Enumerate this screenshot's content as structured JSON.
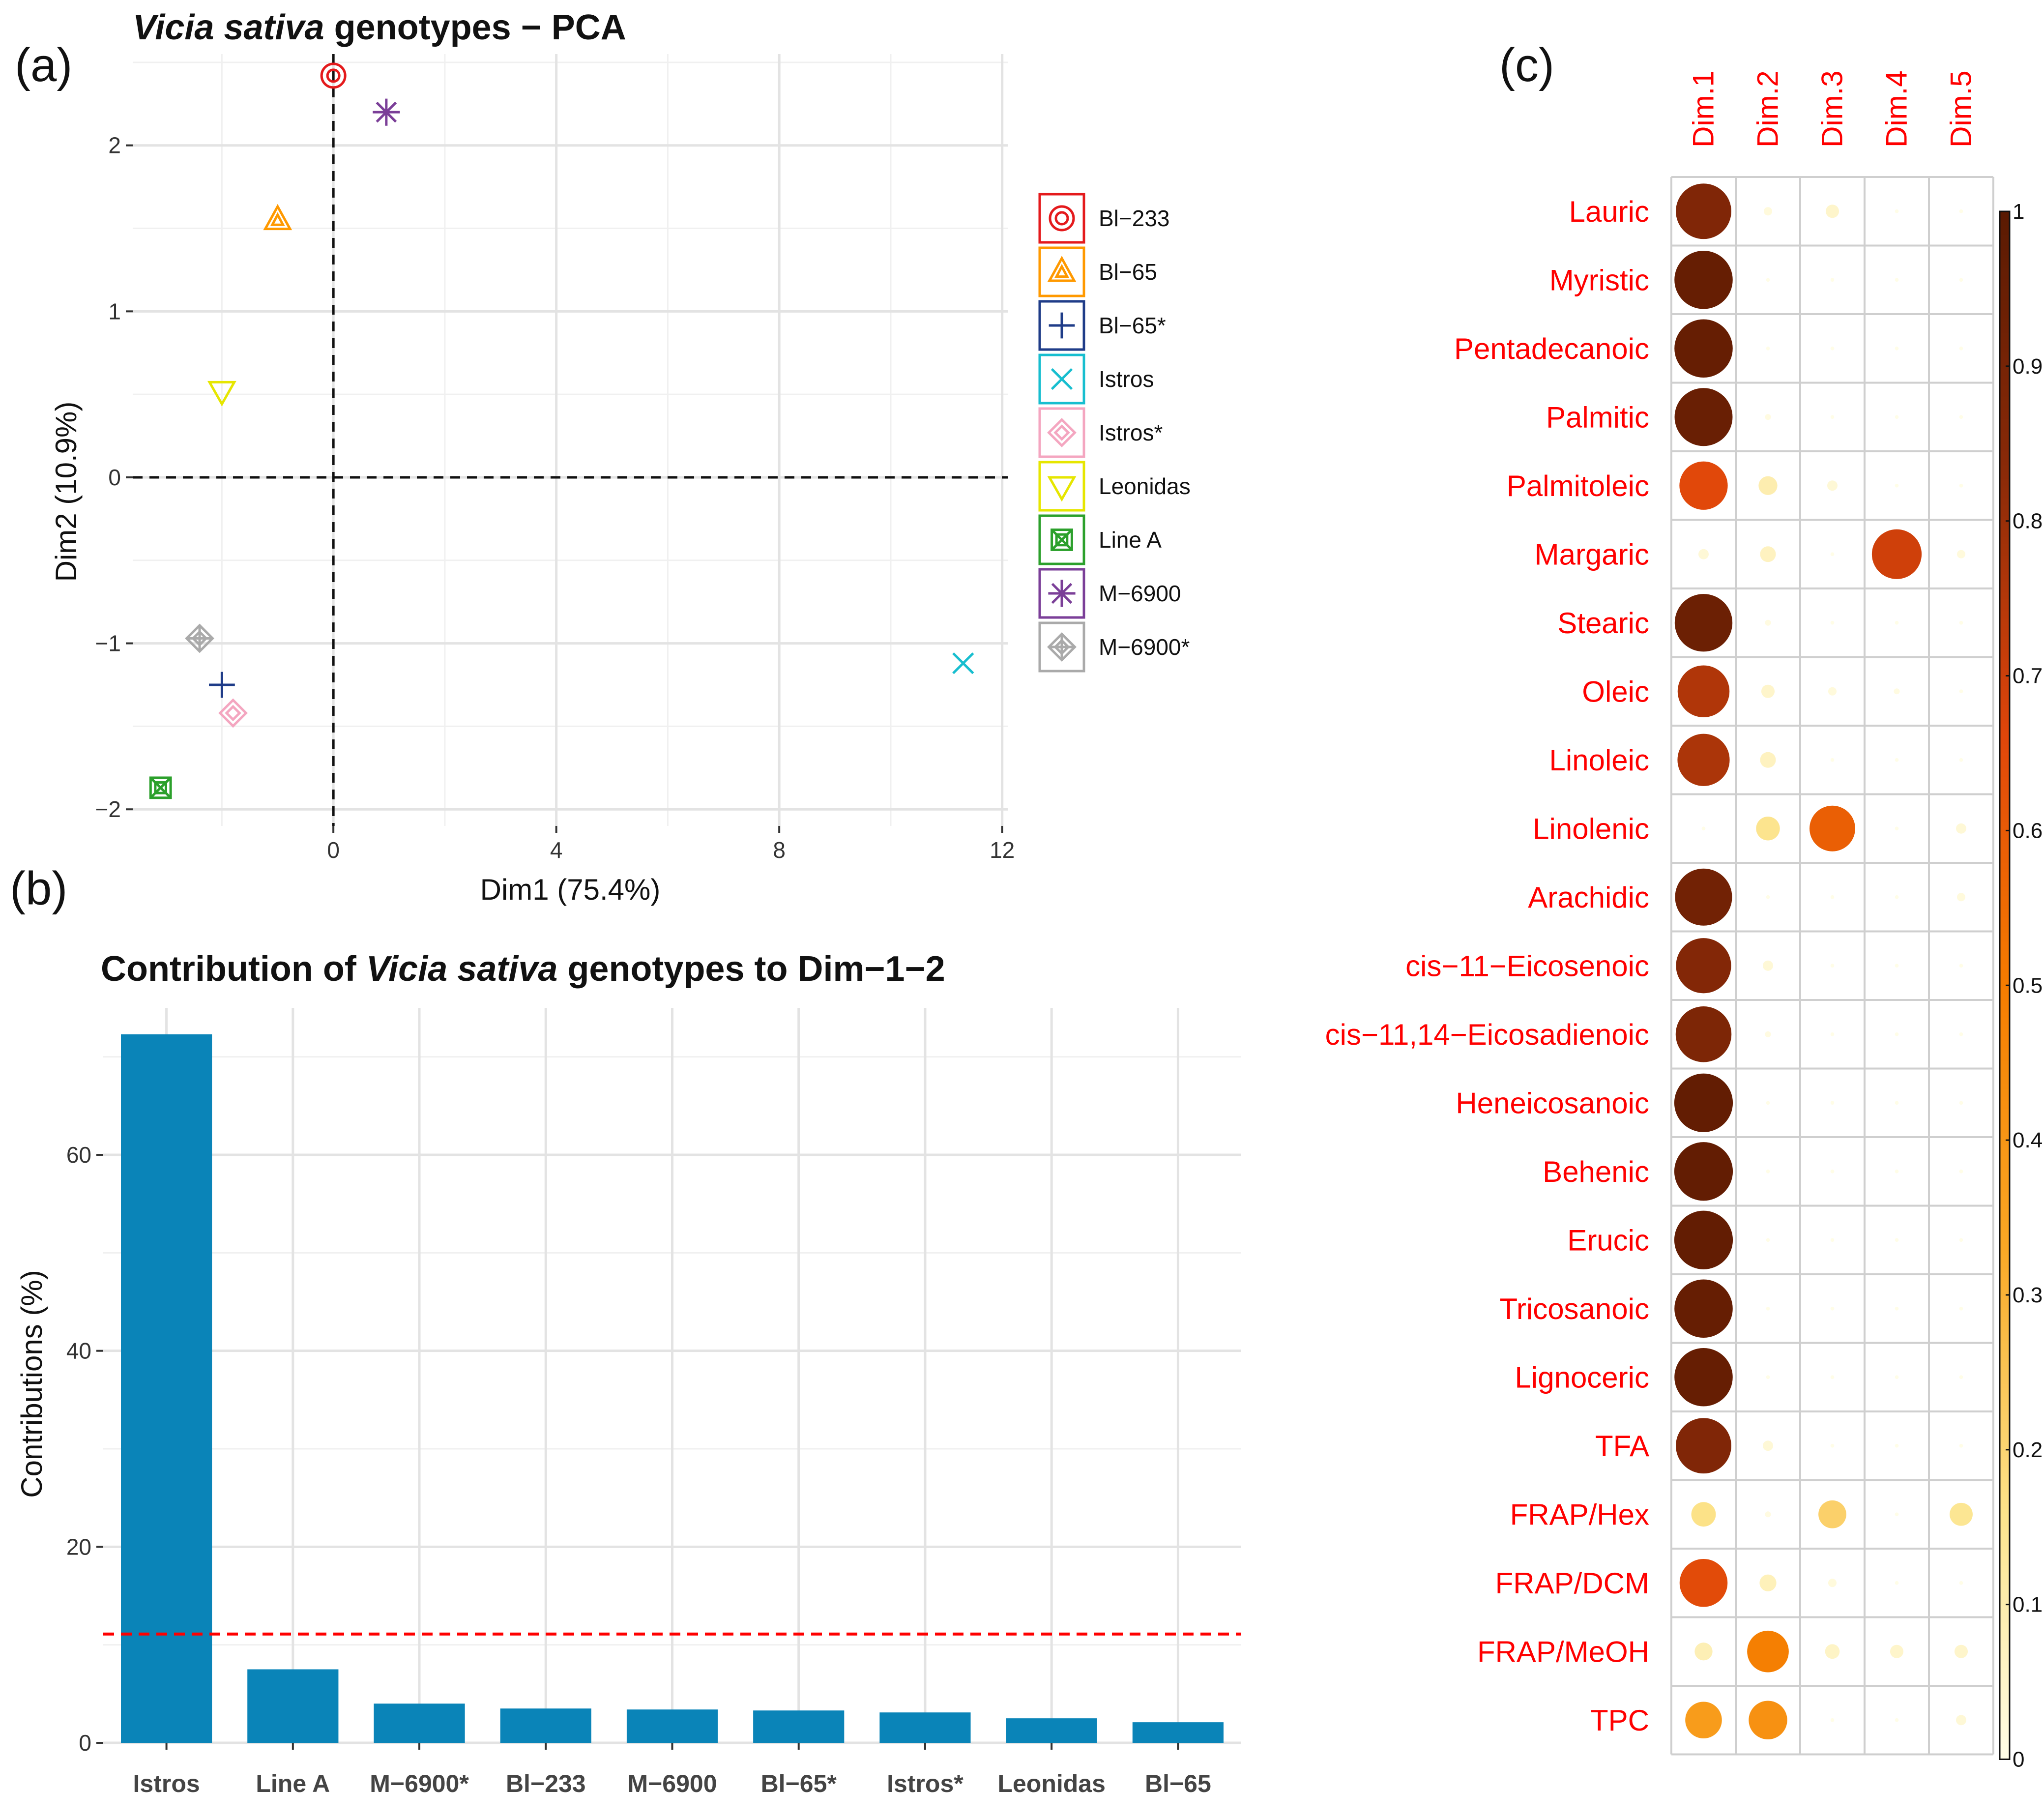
{
  "panel_labels": [
    "(a)",
    "(b)",
    "(c)"
  ],
  "chart_data": [
    {
      "type": "scatter",
      "title": "Vicia sativa genotypes − PCA",
      "title_italic": "Vicia sativa",
      "title_rest": " genotypes − PCA",
      "xlabel": "Dim1 (75.4%)",
      "ylabel": "Dim2 (10.9%)",
      "xlim": [
        -3.6,
        12.1
      ],
      "ylim": [
        -2.1,
        2.55
      ],
      "xticks": [
        0,
        4,
        8,
        12
      ],
      "yticks": [
        -2,
        -1,
        0,
        1,
        2
      ],
      "xtick_labels": [
        "0",
        "4",
        "8",
        "12"
      ],
      "ytick_labels": [
        "−2",
        "−1",
        "0",
        "1",
        "2"
      ],
      "grid": true,
      "reference_lines": {
        "x": 0,
        "y": 0
      },
      "legend_position": "right",
      "points": [
        {
          "name": "Bl−233",
          "x": 0.0,
          "y": 2.42,
          "color": "#e41a1c",
          "marker": "circle-double"
        },
        {
          "name": "Bl−65",
          "x": -1.0,
          "y": 1.55,
          "color": "#ff9900",
          "marker": "triangle-double"
        },
        {
          "name": "Bl−65*",
          "x": -2.0,
          "y": -1.25,
          "color": "#1f3c88",
          "marker": "plus"
        },
        {
          "name": "Istros",
          "x": 11.3,
          "y": -1.12,
          "color": "#17becf",
          "marker": "cross"
        },
        {
          "name": "Istros*",
          "x": -1.8,
          "y": -1.42,
          "color": "#f4a6c0",
          "marker": "diamond-double"
        },
        {
          "name": "Leonidas",
          "x": -2.0,
          "y": 0.52,
          "color": "#e6e600",
          "marker": "triangle-down"
        },
        {
          "name": "Line A",
          "x": -3.1,
          "y": -1.87,
          "color": "#2ca02c",
          "marker": "square-x"
        },
        {
          "name": "M−6900",
          "x": 0.95,
          "y": 2.2,
          "color": "#7b3f98",
          "marker": "asterisk"
        },
        {
          "name": "M−6900*",
          "x": -2.4,
          "y": -0.97,
          "color": "#aaaaaa",
          "marker": "diamond-plus"
        }
      ]
    },
    {
      "type": "bar",
      "title": "Contribution of Vicia sativa genotypes to Dim−1−2",
      "title_before": "Contribution of ",
      "title_italic": "Vicia sativa",
      "title_after": " genotypes to Dim−1−2",
      "xlabel": "",
      "ylabel": "Contributions (%)",
      "ylim": [
        0,
        75
      ],
      "yticks": [
        0,
        20,
        40,
        60
      ],
      "categories": [
        "Istros",
        "Line A",
        "M−6900*",
        "Bl−233",
        "M−6900",
        "Bl−65*",
        "Istros*",
        "Leonidas",
        "Bl−65"
      ],
      "values": [
        72.3,
        7.5,
        4.0,
        3.5,
        3.4,
        3.3,
        3.1,
        2.5,
        2.1
      ],
      "bar_color": "#0a84b8",
      "reference_line": {
        "value": 11.1,
        "color": "#ff0000",
        "style": "dashed"
      },
      "grid": true
    },
    {
      "type": "heatmap",
      "subtype": "correlation-circles",
      "columns": [
        "Dim.1",
        "Dim.2",
        "Dim.3",
        "Dim.4",
        "Dim.5"
      ],
      "rows": [
        "Lauric",
        "Myristic",
        "Pentadecanoic",
        "Palmitic",
        "Palmitoleic",
        "Margaric",
        "Stearic",
        "Oleic",
        "Linoleic",
        "Linolenic",
        "Arachidic",
        "cis−11−Eicosenoic",
        "cis−11,14−Eicosadienoic",
        "Heneicosanoic",
        "Behenic",
        "Erucic",
        "Tricosanoic",
        "Lignoceric",
        "TFA",
        "FRAP/Hex",
        "FRAP/DCM",
        "FRAP/MeOH",
        "TPC"
      ],
      "values": [
        [
          0.87,
          0.02,
          0.05,
          0.0,
          0.0
        ],
        [
          0.96,
          0.0,
          0.0,
          0.0,
          0.0
        ],
        [
          0.96,
          0.0,
          0.0,
          0.0,
          0.0
        ],
        [
          0.95,
          0.01,
          0.0,
          0.0,
          0.0
        ],
        [
          0.66,
          0.1,
          0.03,
          0.0,
          0.0
        ],
        [
          0.03,
          0.07,
          0.0,
          0.7,
          0.02
        ],
        [
          0.94,
          0.01,
          0.0,
          0.0,
          0.0
        ],
        [
          0.76,
          0.05,
          0.02,
          0.01,
          0.0
        ],
        [
          0.77,
          0.07,
          0.0,
          0.0,
          0.0
        ],
        [
          0.0,
          0.16,
          0.59,
          0.0,
          0.03
        ],
        [
          0.92,
          0.0,
          0.0,
          0.0,
          0.02
        ],
        [
          0.86,
          0.03,
          0.0,
          0.0,
          0.0
        ],
        [
          0.88,
          0.01,
          0.0,
          0.0,
          0.0
        ],
        [
          0.97,
          0.0,
          0.0,
          0.0,
          0.0
        ],
        [
          0.97,
          0.0,
          0.0,
          0.0,
          0.0
        ],
        [
          0.97,
          0.0,
          0.0,
          0.0,
          0.0
        ],
        [
          0.96,
          0.0,
          0.0,
          0.0,
          0.0
        ],
        [
          0.96,
          0.0,
          0.0,
          0.0,
          0.0
        ],
        [
          0.87,
          0.03,
          0.0,
          0.0,
          0.0
        ],
        [
          0.17,
          0.01,
          0.22,
          0.0,
          0.15
        ],
        [
          0.65,
          0.08,
          0.02,
          0.0,
          0.0
        ],
        [
          0.09,
          0.49,
          0.06,
          0.05,
          0.05
        ],
        [
          0.38,
          0.42,
          0.0,
          0.0,
          0.03
        ]
      ],
      "color_scale": [
        "#fffde7",
        "#fce38a",
        "#f9a825",
        "#f57c00",
        "#e0460a",
        "#8b2a08",
        "#5a1a02"
      ],
      "colorbar": {
        "min": 0,
        "max": 1,
        "ticks": [
          0,
          0.1,
          0.2,
          0.3,
          0.4,
          0.5,
          0.6,
          0.7,
          0.8,
          0.9,
          1
        ],
        "tick_labels": [
          "0",
          "0.1",
          "0.2",
          "0.3",
          "0.4",
          "0.5",
          "0.6",
          "0.7",
          "0.8",
          "0.9",
          "1"
        ]
      }
    }
  ]
}
